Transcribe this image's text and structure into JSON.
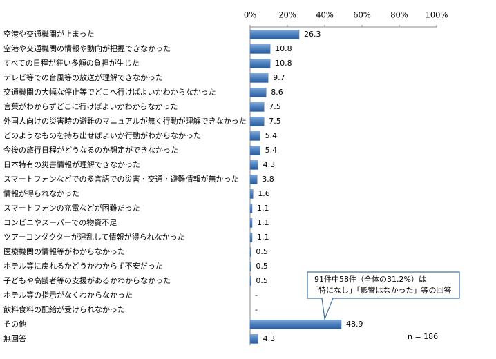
{
  "chart_data": {
    "type": "bar",
    "orientation": "horizontal",
    "categories": [
      "空港や交通機関が止まった",
      "空港や交通機関の情報や動向が把握できなかった",
      "すべての日程が狂い多額の負担が生じた",
      "テレビ等での台風等の放送が理解できなかった",
      "交通機関の大幅な停止等でどこへ行けばよいかわからなかった",
      "言葉がわからずどこに行けばよいかわからなかった",
      "外国人向けの災害時の避難のマニュアルが無く行動が理解できなかった",
      "どのようなものを持ち出せばよいか行動がわからなかった",
      "今後の旅行日程がどうなるのか想定ができなかった",
      "日本特有の災害情報が理解できなかった",
      "スマートフォンなどでの多言語での災害・交通・避難情報が無かった",
      "情報が得られなかった",
      "スマートフォンの充電などが困難だった",
      "コンビニやスーパーでの物資不足",
      "ツアーコンダクターが混乱して情報が得られなかった",
      "医療機関の情報等がわからなかった",
      "ホテル等に戻れるかどうかわからず不安だった",
      "子どもや高齢者等の支援があるかわからなかった",
      "ホテル等の指示がなくわからなかった",
      "飲料食料の配給が受けられなかった",
      "その他",
      "無回答"
    ],
    "values": [
      26.3,
      10.8,
      10.8,
      9.7,
      8.6,
      7.5,
      7.5,
      5.4,
      5.4,
      4.3,
      3.8,
      1.6,
      1.1,
      1.1,
      1.1,
      0.5,
      0.5,
      0.5,
      null,
      null,
      48.9,
      4.3
    ],
    "value_labels": [
      "26.3",
      "10.8",
      "10.8",
      "9.7",
      "8.6",
      "7.5",
      "7.5",
      "5.4",
      "5.4",
      "4.3",
      "3.8",
      "1.6",
      "1.1",
      "1.1",
      "1.1",
      "0.5",
      "0.5",
      "0.5",
      "-",
      "-",
      "48.9",
      "4.3"
    ],
    "color": "#4a7ebb",
    "xlim": [
      0,
      100
    ],
    "xticks": [
      {
        "value": 0,
        "label": "0%"
      },
      {
        "value": 20,
        "label": "20%"
      },
      {
        "value": 40,
        "label": "40%"
      },
      {
        "value": 60,
        "label": "60%"
      },
      {
        "value": 80,
        "label": "80%"
      },
      {
        "value": 100,
        "label": "100%"
      }
    ],
    "grid": false,
    "annotations": [
      "91件中58件（全体の31.2%）は",
      "「特になし」「影響はなかった」等の回答"
    ],
    "note": "n = 186"
  }
}
